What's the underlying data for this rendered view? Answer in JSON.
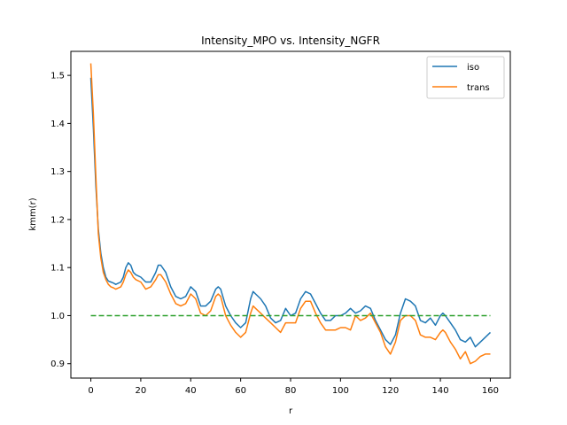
{
  "chart_data": {
    "type": "line",
    "title": "Intensity_MPO vs. Intensity_NGFR",
    "xlabel": "r",
    "ylabel": "kmm(r)",
    "xlim": [
      -8,
      168
    ],
    "ylim": [
      0.87,
      1.55
    ],
    "xticks": [
      0,
      20,
      40,
      60,
      80,
      100,
      120,
      140,
      160
    ],
    "yticks": [
      0.9,
      1.0,
      1.1,
      1.2,
      1.3,
      1.4,
      1.5
    ],
    "ytick_labels": [
      "0.9",
      "1.0",
      "1.1",
      "1.2",
      "1.3",
      "1.4",
      "1.5"
    ],
    "grid": false,
    "legend_position": "top-right",
    "x": [
      0,
      1,
      2,
      3,
      4,
      5,
      6,
      7,
      8,
      9,
      10,
      12,
      13,
      14,
      15,
      16,
      17,
      18,
      20,
      22,
      24,
      26,
      27,
      28,
      30,
      32,
      34,
      36,
      38,
      40,
      42,
      44,
      46,
      48,
      50,
      51,
      52,
      54,
      56,
      58,
      60,
      62,
      64,
      65,
      66,
      68,
      70,
      72,
      74,
      76,
      78,
      80,
      82,
      84,
      86,
      88,
      90,
      92,
      94,
      96,
      98,
      100,
      102,
      104,
      106,
      108,
      110,
      112,
      114,
      116,
      118,
      120,
      122,
      124,
      126,
      128,
      130,
      132,
      134,
      136,
      138,
      140,
      141,
      142,
      144,
      146,
      148,
      150,
      152,
      154,
      156,
      158,
      160
    ],
    "series": [
      {
        "name": "iso",
        "color": "#1f77b4",
        "values": [
          1.495,
          1.39,
          1.27,
          1.18,
          1.13,
          1.1,
          1.08,
          1.072,
          1.07,
          1.068,
          1.065,
          1.07,
          1.08,
          1.1,
          1.11,
          1.105,
          1.09,
          1.085,
          1.08,
          1.07,
          1.07,
          1.09,
          1.105,
          1.105,
          1.09,
          1.06,
          1.04,
          1.035,
          1.04,
          1.06,
          1.05,
          1.02,
          1.02,
          1.03,
          1.055,
          1.06,
          1.055,
          1.02,
          1.0,
          0.985,
          0.975,
          0.985,
          1.035,
          1.05,
          1.045,
          1.035,
          1.02,
          0.995,
          0.985,
          0.99,
          1.015,
          1.0,
          1.005,
          1.035,
          1.05,
          1.045,
          1.025,
          1.005,
          0.99,
          0.99,
          1.0,
          1.0,
          1.005,
          1.015,
          1.005,
          1.01,
          1.02,
          1.015,
          0.99,
          0.97,
          0.95,
          0.94,
          0.96,
          1.005,
          1.035,
          1.03,
          1.02,
          0.99,
          0.985,
          0.995,
          0.98,
          1.0,
          1.005,
          1.0,
          0.985,
          0.97,
          0.95,
          0.945,
          0.955,
          0.935,
          0.945,
          0.955,
          0.965
        ]
      },
      {
        "name": "trans",
        "color": "#ff7f0e",
        "values": [
          1.525,
          1.42,
          1.29,
          1.17,
          1.12,
          1.09,
          1.075,
          1.065,
          1.06,
          1.058,
          1.055,
          1.06,
          1.07,
          1.085,
          1.095,
          1.09,
          1.08,
          1.075,
          1.07,
          1.055,
          1.06,
          1.075,
          1.085,
          1.085,
          1.07,
          1.045,
          1.025,
          1.02,
          1.025,
          1.045,
          1.035,
          1.005,
          1.0,
          1.01,
          1.04,
          1.045,
          1.04,
          1.0,
          0.98,
          0.965,
          0.955,
          0.965,
          1.005,
          1.02,
          1.015,
          1.005,
          0.995,
          0.985,
          0.975,
          0.965,
          0.985,
          0.985,
          0.985,
          1.015,
          1.03,
          1.03,
          1.005,
          0.985,
          0.97,
          0.97,
          0.97,
          0.975,
          0.975,
          0.97,
          1.0,
          0.99,
          0.995,
          1.005,
          0.985,
          0.965,
          0.935,
          0.92,
          0.945,
          0.99,
          1.0,
          1.0,
          0.99,
          0.96,
          0.955,
          0.955,
          0.95,
          0.965,
          0.97,
          0.965,
          0.945,
          0.93,
          0.91,
          0.925,
          0.9,
          0.905,
          0.915,
          0.92,
          0.92
        ]
      },
      {
        "name": "",
        "color": "#2ca02c",
        "dashed": true,
        "x": [
          0,
          160
        ],
        "values": [
          1.0,
          1.0
        ]
      }
    ],
    "legend": [
      "iso",
      "trans"
    ]
  }
}
